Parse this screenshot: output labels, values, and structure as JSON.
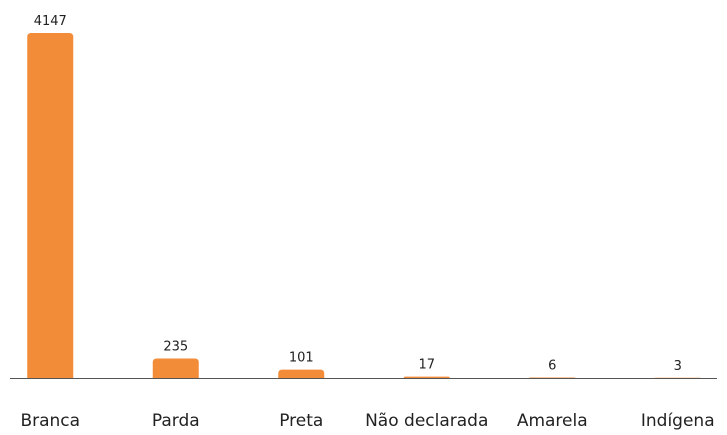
{
  "chart_data": {
    "type": "bar",
    "categories": [
      "Branca",
      "Parda",
      "Preta",
      "Não declarada",
      "Amarela",
      "Indígena"
    ],
    "values": [
      4147,
      235,
      101,
      17,
      6,
      3
    ],
    "color": "#f28c38"
  }
}
